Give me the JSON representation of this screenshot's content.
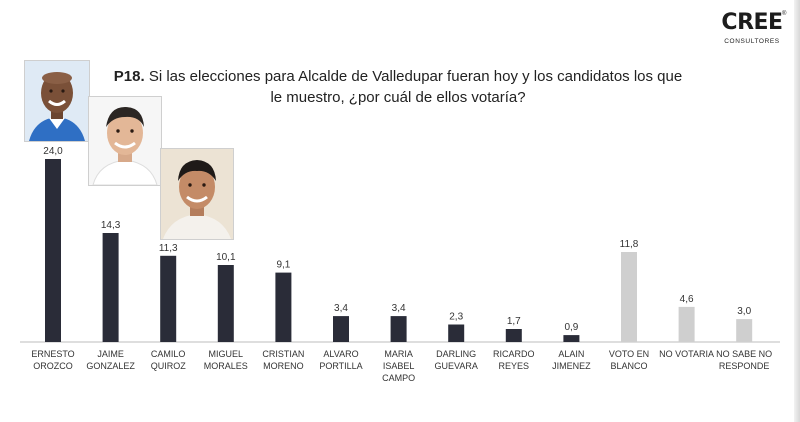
{
  "brand": {
    "name": "CREE",
    "tagline": "CONSULTORES",
    "registered": "®"
  },
  "question": {
    "code": "P18.",
    "text": "Si las elecciones para Alcalde de Valledupar fueran hoy y los candidatos los que le muestro, ¿por cuál de ellos votaría?"
  },
  "colors": {
    "candidate_bar": "#2a2c38",
    "other_bar": "#cfcfcf",
    "axis": "#bdbdbd"
  },
  "chart_data": {
    "type": "bar",
    "title": "",
    "xlabel": "",
    "ylabel": "",
    "ylim": [
      0,
      25
    ],
    "grid": false,
    "categories": [
      "ERNESTO\nOROZCO",
      "JAIME\nGONZALEZ",
      "CAMILO\nQUIROZ",
      "MIGUEL\nMORALES",
      "CRISTIAN\nMORENO",
      "ALVARO\nPORTILLA",
      "MARIA\nISABEL\nCAMPO",
      "DARLING\nGUEVARA",
      "RICARDO\nREYES",
      "ALAIN\nJIMENEZ",
      "VOTO EN\nBLANCO",
      "NO VOTARIA",
      "NO SABE NO\nRESPONDE"
    ],
    "values": [
      24.0,
      14.3,
      11.3,
      10.1,
      9.1,
      3.4,
      3.4,
      2.3,
      1.7,
      0.9,
      11.8,
      4.6,
      3.0
    ],
    "value_labels": [
      "24,0",
      "14,3",
      "11,3",
      "10,1",
      "9,1",
      "3,4",
      "3,4",
      "2,3",
      "1,7",
      "0,9",
      "11,8",
      "4,6",
      "3,0"
    ],
    "bar_group": [
      "candidate",
      "candidate",
      "candidate",
      "candidate",
      "candidate",
      "candidate",
      "candidate",
      "candidate",
      "candidate",
      "candidate",
      "other",
      "other",
      "other"
    ]
  },
  "photos": [
    {
      "name": "photo-ernesto-orozco",
      "icon": "candidate-photo-icon"
    },
    {
      "name": "photo-jaime-gonzalez",
      "icon": "candidate-photo-icon"
    },
    {
      "name": "photo-camilo-quiroz",
      "icon": "candidate-photo-icon"
    }
  ]
}
